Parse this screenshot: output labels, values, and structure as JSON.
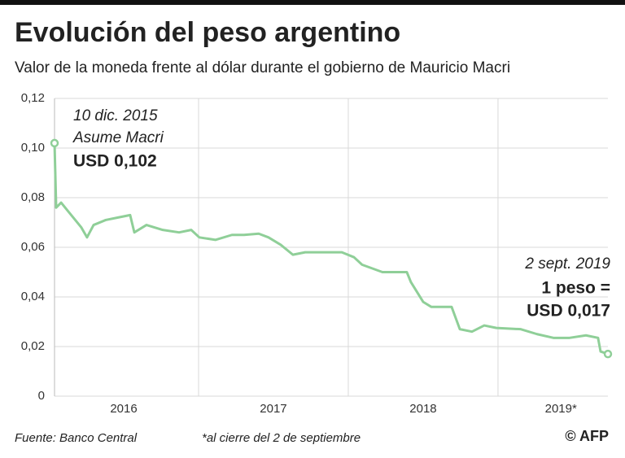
{
  "chart_data": {
    "type": "line",
    "title": "Evolución del peso argentino",
    "subtitle": "Valor de la moneda frente al dólar durante el gobierno de Mauricio Macri",
    "x": [
      2016.038,
      2016.049,
      2016.082,
      2016.136,
      2016.217,
      2016.255,
      2016.299,
      2016.38,
      2016.462,
      2016.543,
      2016.571,
      2016.652,
      2016.761,
      2016.87,
      2016.951,
      2017.005,
      2017.114,
      2017.223,
      2017.304,
      2017.402,
      2017.467,
      2017.549,
      2017.63,
      2017.712,
      2017.848,
      2017.957,
      2018.038,
      2018.092,
      2018.228,
      2018.391,
      2018.418,
      2018.5,
      2018.554,
      2018.69,
      2018.745,
      2018.826,
      2018.908,
      2018.989,
      2019.152,
      2019.261,
      2019.37,
      2019.478,
      2019.587,
      2019.668,
      2019.685,
      2019.734
    ],
    "series": [
      {
        "color": "#8fcf98",
        "values": [
          0.102,
          0.076,
          0.078,
          0.074,
          0.068,
          0.064,
          0.069,
          0.071,
          0.072,
          0.073,
          0.066,
          0.069,
          0.067,
          0.066,
          0.067,
          0.064,
          0.063,
          0.065,
          0.065,
          0.0655,
          0.064,
          0.061,
          0.057,
          0.058,
          0.058,
          0.058,
          0.056,
          0.053,
          0.05,
          0.05,
          0.046,
          0.038,
          0.036,
          0.036,
          0.027,
          0.026,
          0.0285,
          0.0275,
          0.027,
          0.025,
          0.0235,
          0.0235,
          0.0245,
          0.0235,
          0.018,
          0.017
        ]
      }
    ],
    "xlim": [
      2016.038,
      2019.734
    ],
    "xticks": [
      {
        "value": 2016.5,
        "label": "2016"
      },
      {
        "value": 2017.5,
        "label": "2017"
      },
      {
        "value": 2018.5,
        "label": "2018"
      },
      {
        "value": 2019.42,
        "label": "2019*"
      }
    ],
    "xgrid": [
      2017,
      2018,
      2019
    ],
    "ylim": [
      0,
      0.12
    ],
    "yticks": [
      0,
      {
        "value": 0.02,
        "label": "0,02"
      },
      {
        "value": 0.04,
        "label": "0,04"
      },
      {
        "value": 0.06,
        "label": "0,06"
      },
      {
        "value": 0.08,
        "label": "0,08"
      },
      {
        "value": 0.1,
        "label": "0,10"
      },
      {
        "value": 0.12,
        "label": "0,12"
      }
    ],
    "grid": true,
    "annotations": {
      "start": [
        "10 dic. 2015",
        "Asume Macri",
        "USD 0,102"
      ],
      "end": [
        "2 sept. 2019",
        "1 peso =",
        "USD 0,017"
      ]
    },
    "source": "Fuente: Banco Central",
    "note": "*al cierre del 2 de septiembre",
    "credit": "© AFP"
  }
}
